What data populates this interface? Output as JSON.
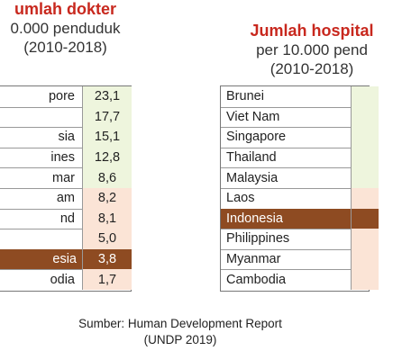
{
  "left": {
    "title": "umlah dokter",
    "subtitle1": "0.000 penduduk",
    "subtitle2": "(2010-2018)",
    "rows": [
      {
        "name": "pore",
        "value": "23,1",
        "tone": "green"
      },
      {
        "name": "",
        "value": "17,7",
        "tone": "green"
      },
      {
        "name": "sia",
        "value": "15,1",
        "tone": "green"
      },
      {
        "name": "ines",
        "value": "12,8",
        "tone": "green"
      },
      {
        "name": "mar",
        "value": "8,6",
        "tone": "green"
      },
      {
        "name": "am",
        "value": "8,2",
        "tone": "peach"
      },
      {
        "name": "nd",
        "value": "8,1",
        "tone": "peach"
      },
      {
        "name": "",
        "value": "5,0",
        "tone": "peach"
      },
      {
        "name": "esia",
        "value": "3,8",
        "tone": "hl"
      },
      {
        "name": "odia",
        "value": "1,7",
        "tone": "peach"
      }
    ]
  },
  "right": {
    "title": "Jumlah hospital",
    "subtitle1": "per 10.000 pend",
    "subtitle2": "(2010-2018)",
    "rows": [
      {
        "name": "Brunei",
        "tone": "green"
      },
      {
        "name": "Viet Nam",
        "tone": "green"
      },
      {
        "name": "Singapore",
        "tone": "green"
      },
      {
        "name": "Thailand",
        "tone": "green"
      },
      {
        "name": "Malaysia",
        "tone": "green"
      },
      {
        "name": "Laos",
        "tone": "peach"
      },
      {
        "name": "Indonesia",
        "tone": "hl"
      },
      {
        "name": "Philippines",
        "tone": "peach"
      },
      {
        "name": "Myanmar",
        "tone": "peach"
      },
      {
        "name": "Cambodia",
        "tone": "peach"
      }
    ]
  },
  "source": {
    "line1": "Sumber: Human Development Report",
    "line2": "(UNDP 2019)"
  }
}
